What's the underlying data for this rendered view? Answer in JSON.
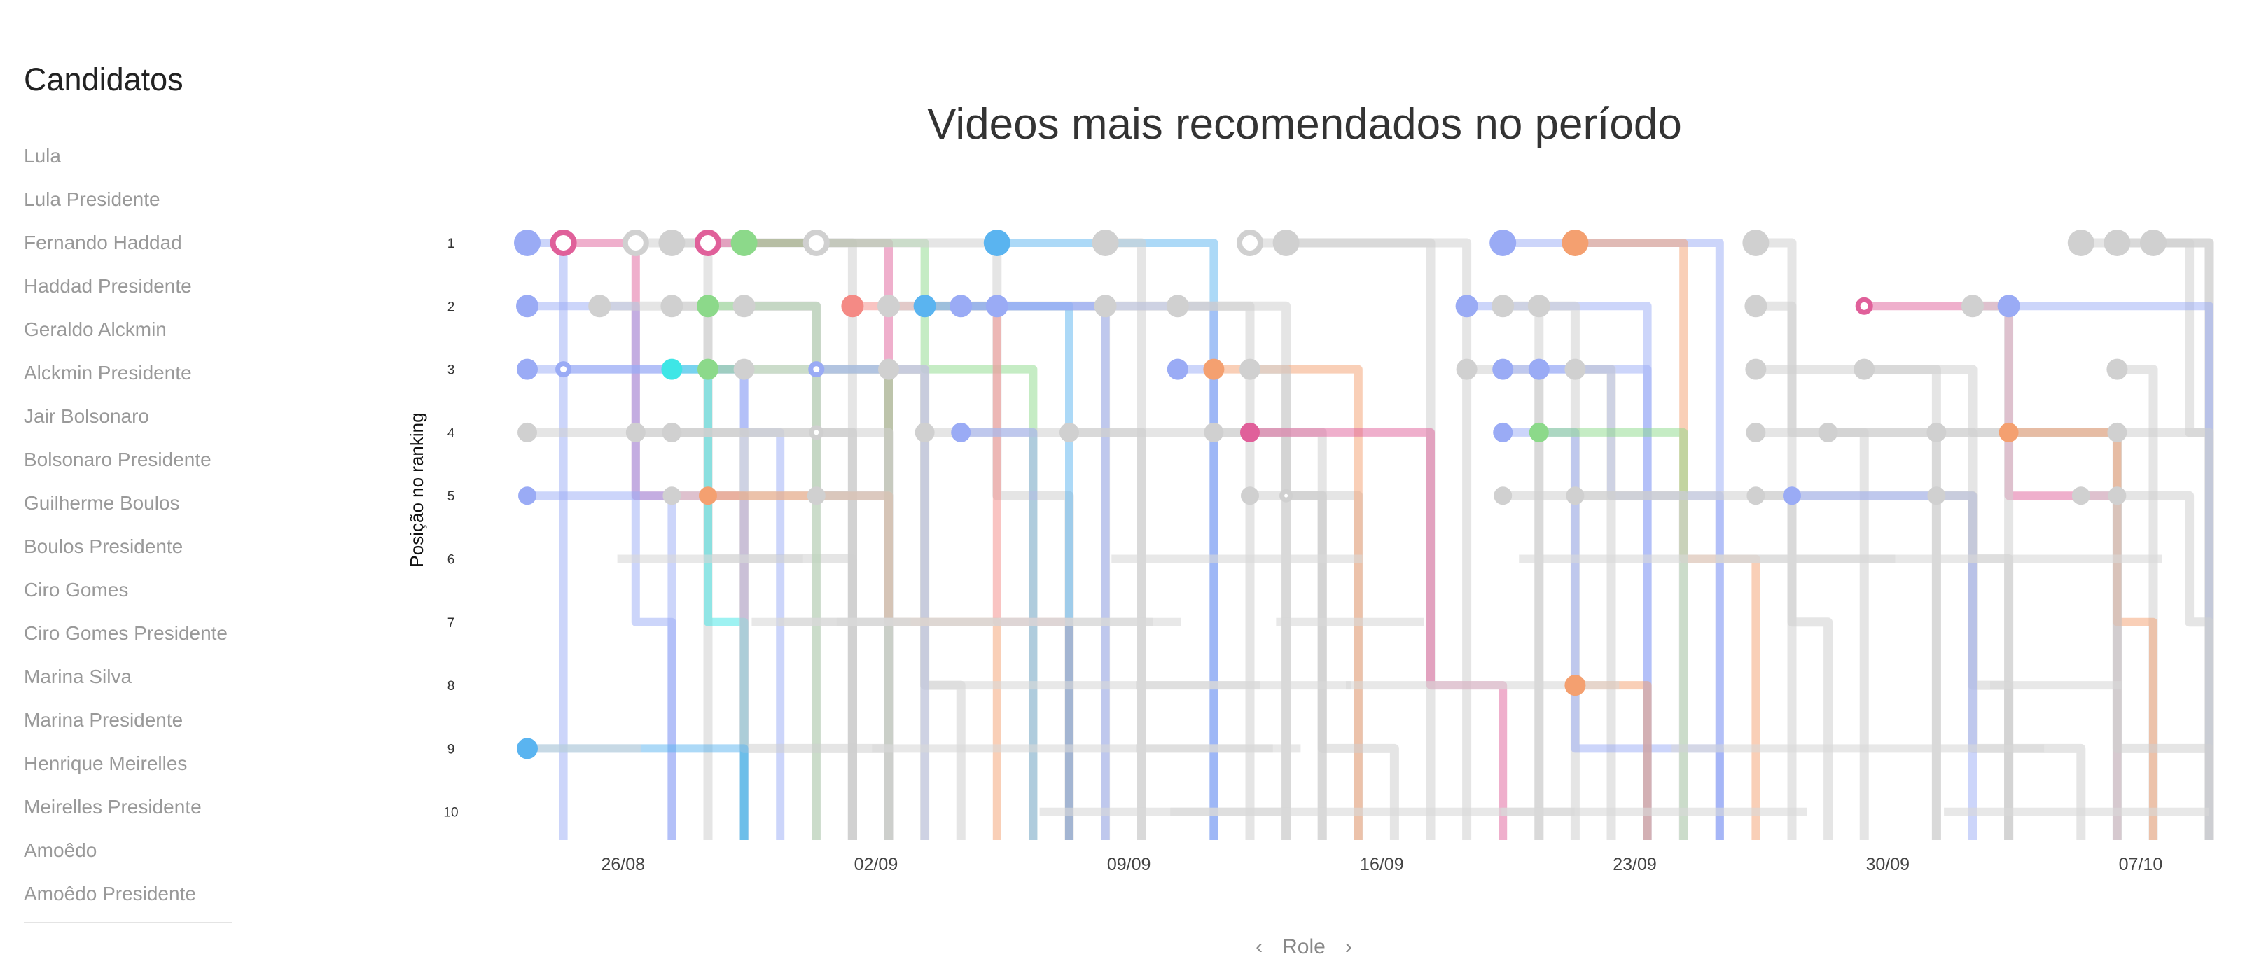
{
  "sidebar": {
    "title": "Candidatos",
    "items": [
      "Lula",
      "Lula Presidente",
      "Fernando Haddad",
      "Haddad Presidente",
      "Geraldo Alckmin",
      "Alckmin Presidente",
      "Jair Bolsonaro",
      "Bolsonaro Presidente",
      "Guilherme Boulos",
      "Boulos Presidente",
      "Ciro Gomes",
      "Ciro Gomes Presidente",
      "Marina Silva",
      "Marina Presidente",
      "Henrique Meirelles",
      "Meirelles Presidente",
      "Amoêdo",
      "Amoêdo Presidente"
    ]
  },
  "nav": {
    "prev": "‹",
    "label": "Role",
    "next": "›"
  },
  "chart_data": {
    "type": "scatter",
    "title": "Videos mais recomendados no período",
    "ylabel": "Posição no ranking",
    "xlabel": "",
    "yticks": [
      1,
      2,
      3,
      4,
      5,
      6,
      7,
      8,
      9,
      10
    ],
    "xticks": [
      {
        "date": "2018-08-26",
        "label": "26/08"
      },
      {
        "date": "2018-09-02",
        "label": "02/09"
      },
      {
        "date": "2018-09-09",
        "label": "09/09"
      },
      {
        "date": "2018-09-16",
        "label": "16/09"
      },
      {
        "date": "2018-09-23",
        "label": "23/09"
      },
      {
        "date": "2018-09-30",
        "label": "30/09"
      },
      {
        "date": "2018-10-07",
        "label": "07/10"
      }
    ],
    "xlim": [
      "2018-08-23",
      "2018-10-09"
    ],
    "ylim": [
      1,
      10
    ],
    "y_inverted": true,
    "grid": false,
    "palette": {
      "gray": "#d0d0d0",
      "blue": "#9aabf5",
      "sky": "#5ab4f0",
      "pink": "#e0609a",
      "green": "#8cd98a",
      "red": "#f48a85",
      "orange": "#f4a070",
      "cyan": "#3ee6e6"
    },
    "points": [
      {
        "date": "2018-08-23",
        "rank": 1,
        "color": "blue"
      },
      {
        "date": "2018-08-24",
        "rank": 1,
        "color": "pink",
        "ring": true
      },
      {
        "date": "2018-08-26",
        "rank": 1,
        "color": "gray",
        "ring": true
      },
      {
        "date": "2018-08-27",
        "rank": 1,
        "color": "gray"
      },
      {
        "date": "2018-08-28",
        "rank": 1,
        "color": "pink",
        "ring": true
      },
      {
        "date": "2018-08-29",
        "rank": 1,
        "color": "green"
      },
      {
        "date": "2018-08-31",
        "rank": 1,
        "color": "gray",
        "ring": true
      },
      {
        "date": "2018-09-05",
        "rank": 1,
        "color": "sky"
      },
      {
        "date": "2018-09-08",
        "rank": 1,
        "color": "gray"
      },
      {
        "date": "2018-09-12",
        "rank": 1,
        "color": "gray",
        "ring": true
      },
      {
        "date": "2018-09-13",
        "rank": 1,
        "color": "gray"
      },
      {
        "date": "2018-09-19",
        "rank": 1,
        "color": "blue"
      },
      {
        "date": "2018-09-21",
        "rank": 1,
        "color": "orange"
      },
      {
        "date": "2018-09-26",
        "rank": 1,
        "color": "gray"
      },
      {
        "date": "2018-10-05",
        "rank": 1,
        "color": "gray"
      },
      {
        "date": "2018-10-06",
        "rank": 1,
        "color": "gray"
      },
      {
        "date": "2018-10-07",
        "rank": 1,
        "color": "gray"
      },
      {
        "date": "2018-08-23",
        "rank": 2,
        "color": "blue"
      },
      {
        "date": "2018-08-25",
        "rank": 2,
        "color": "gray"
      },
      {
        "date": "2018-08-27",
        "rank": 2,
        "color": "gray"
      },
      {
        "date": "2018-08-28",
        "rank": 2,
        "color": "green"
      },
      {
        "date": "2018-08-29",
        "rank": 2,
        "color": "gray"
      },
      {
        "date": "2018-09-01",
        "rank": 2,
        "color": "red"
      },
      {
        "date": "2018-09-02",
        "rank": 2,
        "color": "gray"
      },
      {
        "date": "2018-09-03",
        "rank": 2,
        "color": "sky"
      },
      {
        "date": "2018-09-04",
        "rank": 2,
        "color": "blue"
      },
      {
        "date": "2018-09-05",
        "rank": 2,
        "color": "blue"
      },
      {
        "date": "2018-09-08",
        "rank": 2,
        "color": "gray"
      },
      {
        "date": "2018-09-10",
        "rank": 2,
        "color": "gray"
      },
      {
        "date": "2018-09-18",
        "rank": 2,
        "color": "blue"
      },
      {
        "date": "2018-09-19",
        "rank": 2,
        "color": "gray"
      },
      {
        "date": "2018-09-20",
        "rank": 2,
        "color": "gray"
      },
      {
        "date": "2018-09-26",
        "rank": 2,
        "color": "gray"
      },
      {
        "date": "2018-09-29",
        "rank": 2,
        "color": "pink",
        "ring": true
      },
      {
        "date": "2018-10-02",
        "rank": 2,
        "color": "gray"
      },
      {
        "date": "2018-10-03",
        "rank": 2,
        "color": "blue"
      },
      {
        "date": "2018-08-23",
        "rank": 3,
        "color": "blue"
      },
      {
        "date": "2018-08-24",
        "rank": 3,
        "color": "blue",
        "ring": true
      },
      {
        "date": "2018-08-27",
        "rank": 3,
        "color": "cyan"
      },
      {
        "date": "2018-08-28",
        "rank": 3,
        "color": "green"
      },
      {
        "date": "2018-08-29",
        "rank": 3,
        "color": "gray"
      },
      {
        "date": "2018-08-31",
        "rank": 3,
        "color": "blue",
        "ring": true
      },
      {
        "date": "2018-09-02",
        "rank": 3,
        "color": "gray"
      },
      {
        "date": "2018-09-10",
        "rank": 3,
        "color": "blue"
      },
      {
        "date": "2018-09-11",
        "rank": 3,
        "color": "orange"
      },
      {
        "date": "2018-09-12",
        "rank": 3,
        "color": "gray"
      },
      {
        "date": "2018-09-18",
        "rank": 3,
        "color": "gray"
      },
      {
        "date": "2018-09-19",
        "rank": 3,
        "color": "blue"
      },
      {
        "date": "2018-09-20",
        "rank": 3,
        "color": "blue"
      },
      {
        "date": "2018-09-21",
        "rank": 3,
        "color": "gray"
      },
      {
        "date": "2018-09-26",
        "rank": 3,
        "color": "gray"
      },
      {
        "date": "2018-09-29",
        "rank": 3,
        "color": "gray"
      },
      {
        "date": "2018-10-06",
        "rank": 3,
        "color": "gray"
      },
      {
        "date": "2018-08-23",
        "rank": 4,
        "color": "gray"
      },
      {
        "date": "2018-08-26",
        "rank": 4,
        "color": "gray"
      },
      {
        "date": "2018-08-27",
        "rank": 4,
        "color": "gray"
      },
      {
        "date": "2018-08-31",
        "rank": 4,
        "color": "gray",
        "ring": true
      },
      {
        "date": "2018-09-03",
        "rank": 4,
        "color": "gray"
      },
      {
        "date": "2018-09-04",
        "rank": 4,
        "color": "blue"
      },
      {
        "date": "2018-09-07",
        "rank": 4,
        "color": "gray"
      },
      {
        "date": "2018-09-11",
        "rank": 4,
        "color": "gray"
      },
      {
        "date": "2018-09-12",
        "rank": 4,
        "color": "pink"
      },
      {
        "date": "2018-09-19",
        "rank": 4,
        "color": "blue"
      },
      {
        "date": "2018-09-20",
        "rank": 4,
        "color": "green"
      },
      {
        "date": "2018-09-26",
        "rank": 4,
        "color": "gray"
      },
      {
        "date": "2018-09-28",
        "rank": 4,
        "color": "gray"
      },
      {
        "date": "2018-10-01",
        "rank": 4,
        "color": "gray"
      },
      {
        "date": "2018-10-03",
        "rank": 4,
        "color": "orange"
      },
      {
        "date": "2018-10-06",
        "rank": 4,
        "color": "gray"
      },
      {
        "date": "2018-08-23",
        "rank": 5,
        "color": "blue"
      },
      {
        "date": "2018-08-27",
        "rank": 5,
        "color": "gray"
      },
      {
        "date": "2018-08-28",
        "rank": 5,
        "color": "orange"
      },
      {
        "date": "2018-08-31",
        "rank": 5,
        "color": "gray"
      },
      {
        "date": "2018-09-12",
        "rank": 5,
        "color": "gray"
      },
      {
        "date": "2018-09-13",
        "rank": 5,
        "color": "gray",
        "ring": true
      },
      {
        "date": "2018-09-19",
        "rank": 5,
        "color": "gray"
      },
      {
        "date": "2018-09-21",
        "rank": 5,
        "color": "gray"
      },
      {
        "date": "2018-09-26",
        "rank": 5,
        "color": "gray"
      },
      {
        "date": "2018-09-27",
        "rank": 5,
        "color": "blue"
      },
      {
        "date": "2018-10-01",
        "rank": 5,
        "color": "gray"
      },
      {
        "date": "2018-10-05",
        "rank": 5,
        "color": "gray"
      },
      {
        "date": "2018-10-06",
        "rank": 5,
        "color": "gray"
      },
      {
        "date": "2018-09-21",
        "rank": 8,
        "color": "orange"
      },
      {
        "date": "2018-08-23",
        "rank": 9,
        "color": "sky"
      }
    ]
  }
}
